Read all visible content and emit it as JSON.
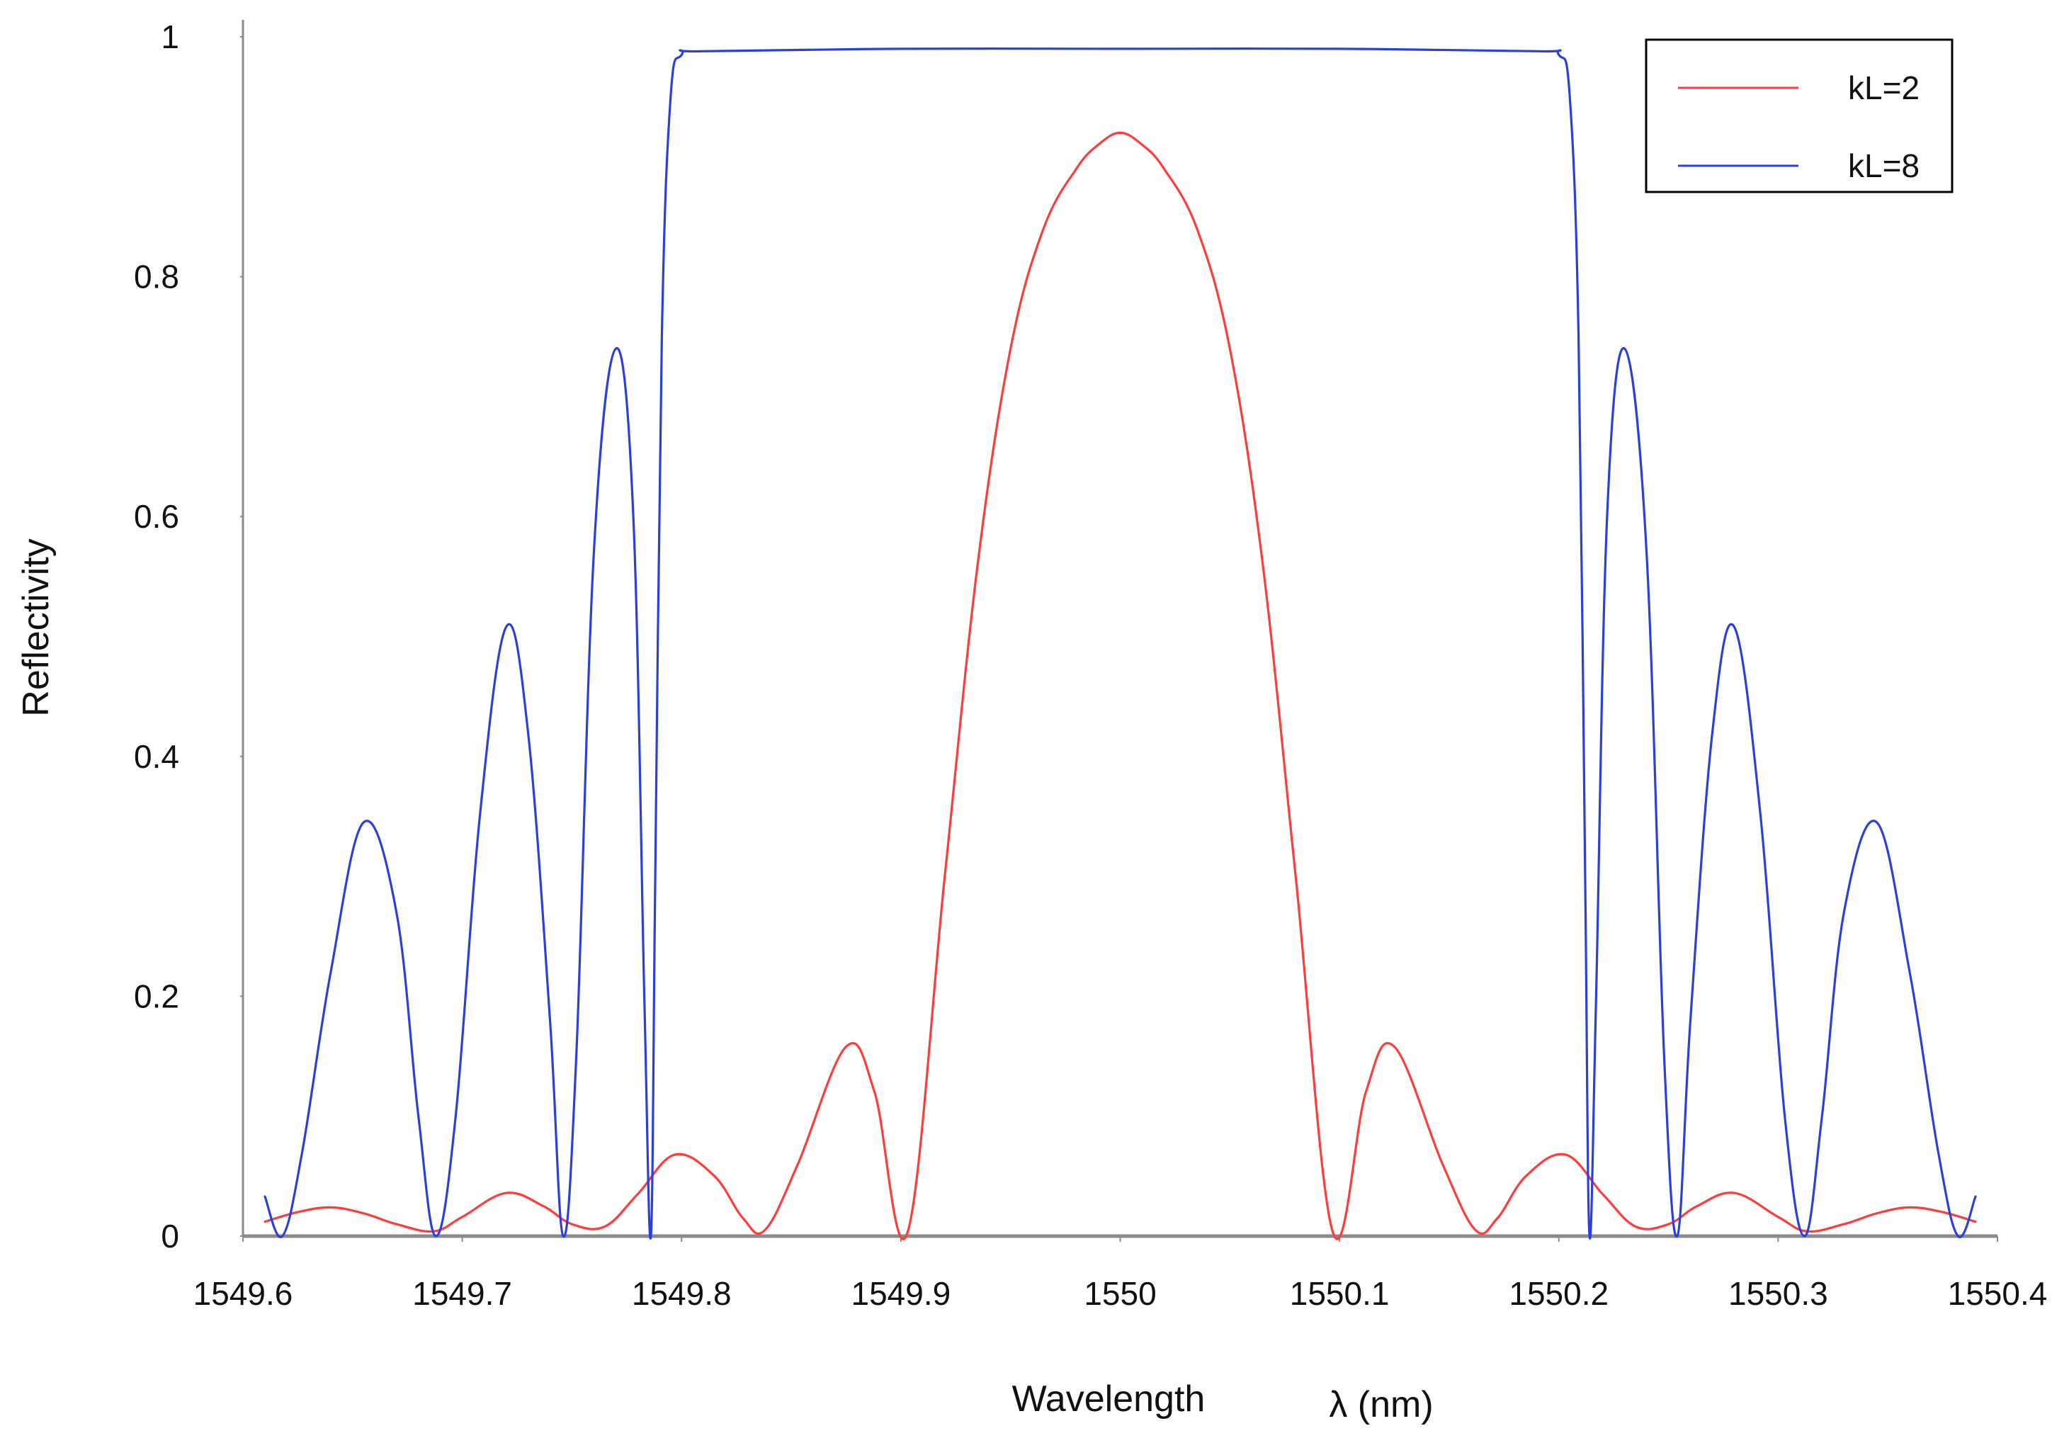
{
  "chart_data": {
    "type": "line",
    "xlabel": "Wavelength",
    "xlabel_symbol": "λ (nm)",
    "ylabel": "Reflectivity",
    "xlim": [
      1549.6,
      1550.4
    ],
    "ylim": [
      0,
      1
    ],
    "x_ticks": [
      "1549.6",
      "1549.7",
      "1549.8",
      "1549.9",
      "1550",
      "1550.1",
      "1550.2",
      "1550.3",
      "1550.4"
    ],
    "y_ticks": [
      "0",
      "0.2",
      "0.4",
      "0.6",
      "0.8",
      "1"
    ],
    "grid": false,
    "legend_position": "top-right",
    "series": [
      {
        "name": "kL=2",
        "color": "#ff3b3b",
        "points": [
          [
            1549.61,
            0.012
          ],
          [
            1549.625,
            0.02
          ],
          [
            1549.64,
            0.024
          ],
          [
            1549.655,
            0.019
          ],
          [
            1549.67,
            0.01
          ],
          [
            1549.687,
            0.004
          ],
          [
            1549.7,
            0.016
          ],
          [
            1549.72,
            0.036
          ],
          [
            1549.737,
            0.025
          ],
          [
            1549.75,
            0.01
          ],
          [
            1549.765,
            0.008
          ],
          [
            1549.78,
            0.035
          ],
          [
            1549.797,
            0.068
          ],
          [
            1549.815,
            0.05
          ],
          [
            1549.828,
            0.015
          ],
          [
            1549.838,
            0.005
          ],
          [
            1549.853,
            0.06
          ],
          [
            1549.875,
            0.158
          ],
          [
            1549.888,
            0.12
          ],
          [
            1549.903,
            0.003
          ],
          [
            1549.92,
            0.3
          ],
          [
            1549.935,
            0.56
          ],
          [
            1549.95,
            0.74
          ],
          [
            1549.965,
            0.84
          ],
          [
            1549.98,
            0.89
          ],
          [
            1549.99,
            0.91
          ],
          [
            1550.0,
            0.92
          ],
          [
            1550.01,
            0.91
          ],
          [
            1550.02,
            0.89
          ],
          [
            1550.035,
            0.84
          ],
          [
            1550.05,
            0.74
          ],
          [
            1550.065,
            0.56
          ],
          [
            1550.08,
            0.3
          ],
          [
            1550.097,
            0.003
          ],
          [
            1550.112,
            0.12
          ],
          [
            1550.125,
            0.158
          ],
          [
            1550.147,
            0.06
          ],
          [
            1550.162,
            0.005
          ],
          [
            1550.172,
            0.015
          ],
          [
            1550.185,
            0.05
          ],
          [
            1550.203,
            0.068
          ],
          [
            1550.22,
            0.035
          ],
          [
            1550.235,
            0.008
          ],
          [
            1550.25,
            0.01
          ],
          [
            1550.263,
            0.025
          ],
          [
            1550.28,
            0.036
          ],
          [
            1550.3,
            0.016
          ],
          [
            1550.313,
            0.004
          ],
          [
            1550.33,
            0.01
          ],
          [
            1550.345,
            0.019
          ],
          [
            1550.36,
            0.024
          ],
          [
            1550.375,
            0.02
          ],
          [
            1550.39,
            0.012
          ]
        ]
      },
      {
        "name": "kL=8",
        "color": "#2b3fe0",
        "points": [
          [
            1549.61,
            0.033
          ],
          [
            1549.618,
            0.0
          ],
          [
            1549.627,
            0.07
          ],
          [
            1549.64,
            0.22
          ],
          [
            1549.655,
            0.345
          ],
          [
            1549.67,
            0.27
          ],
          [
            1549.68,
            0.1
          ],
          [
            1549.688,
            0.0
          ],
          [
            1549.697,
            0.1
          ],
          [
            1549.708,
            0.35
          ],
          [
            1549.72,
            0.508
          ],
          [
            1549.73,
            0.42
          ],
          [
            1549.74,
            0.18
          ],
          [
            1549.746,
            0.0
          ],
          [
            1549.752,
            0.15
          ],
          [
            1549.76,
            0.57
          ],
          [
            1549.77,
            0.74
          ],
          [
            1549.778,
            0.6
          ],
          [
            1549.783,
            0.2
          ],
          [
            1549.786,
            0.0
          ],
          [
            1549.788,
            0.3
          ],
          [
            1549.791,
            0.75
          ],
          [
            1549.795,
            0.95
          ],
          [
            1549.8,
            0.985
          ],
          [
            1549.81,
            0.988
          ],
          [
            1549.9,
            0.99
          ],
          [
            1550.0,
            0.99
          ],
          [
            1550.1,
            0.99
          ],
          [
            1550.19,
            0.988
          ],
          [
            1550.2,
            0.985
          ],
          [
            1550.205,
            0.95
          ],
          [
            1550.209,
            0.75
          ],
          [
            1550.212,
            0.3
          ],
          [
            1550.214,
            0.0
          ],
          [
            1550.217,
            0.2
          ],
          [
            1550.222,
            0.6
          ],
          [
            1550.23,
            0.74
          ],
          [
            1550.24,
            0.57
          ],
          [
            1550.248,
            0.15
          ],
          [
            1550.254,
            0.0
          ],
          [
            1550.26,
            0.18
          ],
          [
            1550.27,
            0.42
          ],
          [
            1550.28,
            0.508
          ],
          [
            1550.292,
            0.35
          ],
          [
            1550.303,
            0.1
          ],
          [
            1550.312,
            0.0
          ],
          [
            1550.32,
            0.1
          ],
          [
            1550.33,
            0.27
          ],
          [
            1550.345,
            0.345
          ],
          [
            1550.36,
            0.22
          ],
          [
            1550.373,
            0.07
          ],
          [
            1550.382,
            0.0
          ],
          [
            1550.39,
            0.033
          ]
        ]
      }
    ]
  }
}
